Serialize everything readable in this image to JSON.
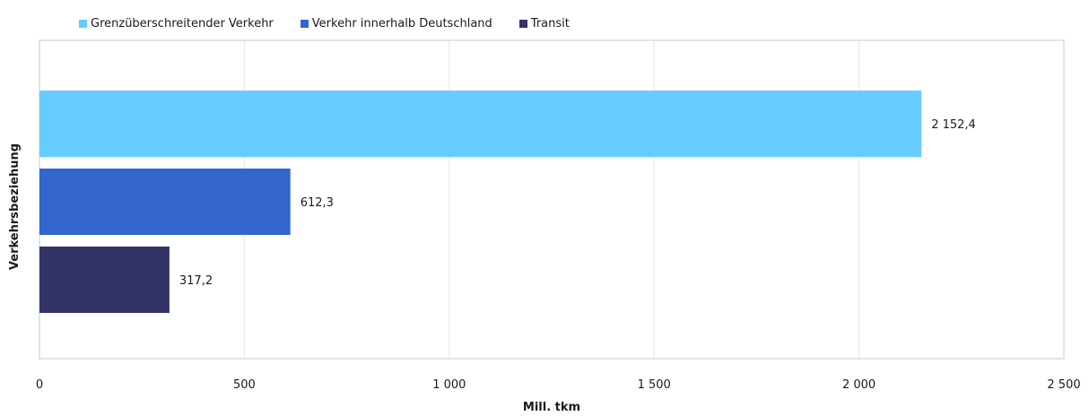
{
  "chart_data": {
    "type": "bar",
    "orientation": "horizontal",
    "categories": [
      "Grenzüberschreitender Verkehr",
      "Verkehr innerhalb Deutschland",
      "Transit"
    ],
    "series": [
      {
        "name": "Grenzüberschreitender Verkehr",
        "color": "#66ccff",
        "value": 2152.4,
        "label": "2 152,4"
      },
      {
        "name": "Verkehr innerhalb Deutschland",
        "color": "#3366cc",
        "value": 612.3,
        "label": "612,3"
      },
      {
        "name": "Transit",
        "color": "#333366",
        "value": 317.2,
        "label": "317,2"
      }
    ],
    "xlabel": "Mill. tkm",
    "ylabel": "Verkehrsbeziehung",
    "xlim": [
      0,
      2500
    ],
    "xticks": [
      0,
      500,
      1000,
      1500,
      2000,
      2500
    ],
    "xtick_labels": [
      "0",
      "500",
      "1 000",
      "1 500",
      "2 000",
      "2 500"
    ],
    "grid": "vertical",
    "legend_position": "top-left"
  }
}
